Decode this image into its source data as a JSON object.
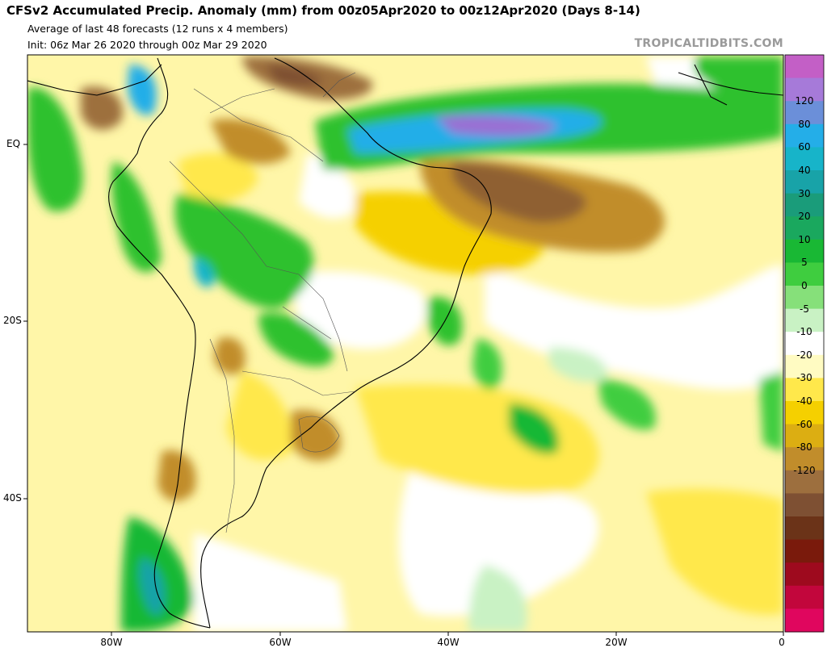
{
  "header": {
    "title": "CFSv2 Accumulated Precip. Anomaly (mm) from 00z05Apr2020 to 00z12Apr2020 (Days 8-14)",
    "line1": "Average of last 48 forecasts (12 runs x 4 members)",
    "line2": "Init: 06z Mar 26 2020 through 00z Mar 29 2020",
    "brand": "TROPICALTIDBITS.COM"
  },
  "axes": {
    "lat_labels": [
      "EQ",
      "20S",
      "40S"
    ],
    "lon_labels": [
      "80W",
      "60W",
      "40W",
      "20W",
      "0"
    ]
  },
  "colorbar": {
    "labels": [
      "120",
      "80",
      "60",
      "40",
      "30",
      "20",
      "10",
      "5",
      "0",
      "-5",
      "-10",
      "-20",
      "-30",
      "-40",
      "-60",
      "-80",
      "-120"
    ],
    "colors": [
      "#c35fc6",
      "#a67ad9",
      "#6b8fd9",
      "#24aee8",
      "#17b4c9",
      "#18a3a8",
      "#1a9c7a",
      "#1aa85e",
      "#19b834",
      "#3fcd3f",
      "#86e07a",
      "#c9f2c4",
      "#ffffff",
      "#fffbc2",
      "#ffe84b",
      "#f5d000",
      "#dcae12",
      "#c18d2b",
      "#9d6f3e",
      "#7e5033",
      "#6b3318",
      "#7a1a0c",
      "#9e0a1e",
      "#c2063c",
      "#e0065e"
    ]
  },
  "regions": [
    {
      "label": "wet-atlantic-itcz",
      "color": "#2fc12f"
    },
    {
      "label": "wet-core",
      "color": "#9a6fd3"
    },
    {
      "label": "dry-ne-brazil",
      "color": "#8f6131"
    },
    {
      "label": "neutral",
      "color": "#ffffff"
    }
  ]
}
